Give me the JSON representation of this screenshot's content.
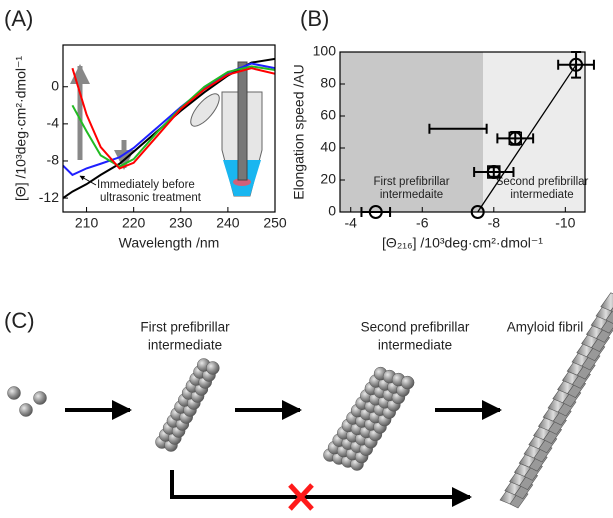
{
  "panels": {
    "a": "(A)",
    "b": "(B)",
    "c": "(C)"
  },
  "chart_data": [
    {
      "type": "line",
      "x_label": "Wavelength /nm",
      "y_label": "[Θ] /10³deg·cm²·dmol⁻¹",
      "annotation": [
        "Immediately before",
        "ultrasonic treatment"
      ],
      "x": [
        205,
        207,
        210,
        213,
        217,
        220,
        225,
        230,
        235,
        240,
        245,
        250
      ],
      "series": [
        {
          "color": "#000000",
          "values": [
            -12.0,
            -11.3,
            -10.5,
            -9.5,
            -8.3,
            -7.0,
            -4.8,
            -2.6,
            -0.6,
            1.2,
            2.6,
            3.0
          ]
        },
        {
          "color": "#1f1fff",
          "values": [
            -8.5,
            -9.5,
            -8.8,
            -8.3,
            -7.6,
            -6.6,
            -4.4,
            -2.2,
            -0.2,
            1.5,
            2.5,
            2.0
          ]
        },
        {
          "color": "#22bb22",
          "values": [
            null,
            -2.0,
            -4.8,
            -7.4,
            -8.6,
            -7.8,
            -4.9,
            -2.3,
            0,
            1.6,
            2.2,
            1.8
          ]
        },
        {
          "color": "#ff0000",
          "values": [
            null,
            2.0,
            -3.0,
            -6.5,
            -8.8,
            -8.2,
            -5.3,
            -2.4,
            -0.3,
            1.3,
            2.0,
            1.4
          ]
        }
      ],
      "xlim": [
        205,
        250
      ],
      "xticks": [
        210,
        220,
        230,
        240,
        250
      ],
      "ylim": [
        -13.5,
        4.5
      ],
      "yticks": [
        -12,
        -8,
        -4,
        0
      ]
    },
    {
      "type": "scatter",
      "x_label": "[Θ₂₁₆] /10³deg·cm²·dmol⁻¹",
      "y_label": "Elongation speed /AU",
      "xlim": [
        -3.7,
        -10.55
      ],
      "xticks": [
        -4,
        -6,
        -8,
        -10
      ],
      "ylim": [
        0,
        100
      ],
      "yticks": [
        0,
        20,
        40,
        60,
        80,
        100
      ],
      "regions": [
        {
          "xlim": [
            -3.7,
            -7.7
          ],
          "color": "#c8c8c8",
          "label": [
            "First prefibrillar",
            "intermedaite"
          ]
        },
        {
          "xlim": [
            -7.7,
            -10.55
          ],
          "color": "#ececec",
          "label": [
            "Second prefibrillar",
            "intermediate"
          ]
        }
      ],
      "series": [
        {
          "marker": "circle",
          "x": [
            -4.7,
            -7.55,
            -10.3
          ],
          "values": [
            0,
            0,
            92
          ],
          "xerr": [
            0.4,
            null,
            0.5
          ],
          "yerr": [
            null,
            null,
            8
          ]
        },
        {
          "marker": "square",
          "x": [
            -8.6,
            -8.0
          ],
          "values": [
            46,
            25
          ],
          "xerr": [
            0.5,
            0.55
          ],
          "yerr": [
            4,
            3
          ]
        },
        {
          "marker": "none",
          "x": [
            -7.0
          ],
          "values": [
            52
          ],
          "xerr": [
            0.8
          ],
          "yerr": [
            null
          ]
        }
      ],
      "fit_line": {
        "x": [
          -7.55,
          -10.3
        ],
        "y": [
          0,
          92
        ]
      }
    }
  ],
  "pathway": {
    "stages": [
      [
        "First prefibrillar",
        "intermediate"
      ],
      [
        "Second prefibrillar",
        "intermediate"
      ],
      [
        "Amyloid fibril"
      ]
    ]
  }
}
